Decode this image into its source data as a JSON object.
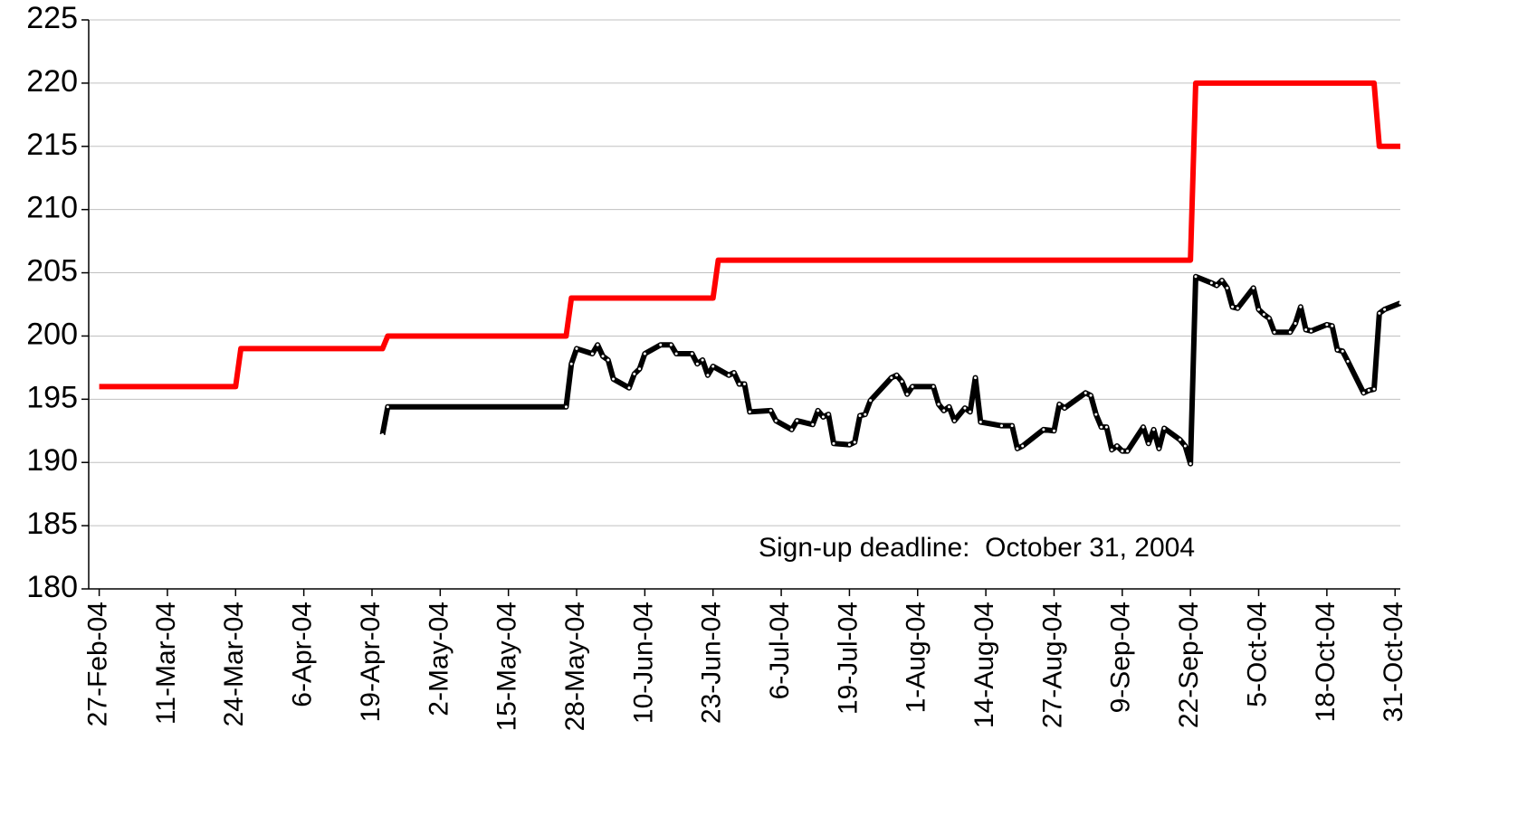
{
  "chart_data": {
    "type": "line",
    "annotation": "Sign-up deadline:  October 31, 2004",
    "xlim": [
      "2004-02-25",
      "2004-11-01"
    ],
    "xticks": [
      {
        "value": "2004-02-27",
        "label": "27-Feb-04"
      },
      {
        "value": "2004-03-11",
        "label": "11-Mar-04"
      },
      {
        "value": "2004-03-24",
        "label": "24-Mar-04"
      },
      {
        "value": "2004-04-06",
        "label": "6-Apr-04"
      },
      {
        "value": "2004-04-19",
        "label": "19-Apr-04"
      },
      {
        "value": "2004-05-02",
        "label": "2-May-04"
      },
      {
        "value": "2004-05-15",
        "label": "15-May-04"
      },
      {
        "value": "2004-05-28",
        "label": "28-May-04"
      },
      {
        "value": "2004-06-10",
        "label": "10-Jun-04"
      },
      {
        "value": "2004-06-23",
        "label": "23-Jun-04"
      },
      {
        "value": "2004-07-06",
        "label": "6-Jul-04"
      },
      {
        "value": "2004-07-19",
        "label": "19-Jul-04"
      },
      {
        "value": "2004-08-01",
        "label": "1-Aug-04"
      },
      {
        "value": "2004-08-14",
        "label": "14-Aug-04"
      },
      {
        "value": "2004-08-27",
        "label": "27-Aug-04"
      },
      {
        "value": "2004-09-09",
        "label": "9-Sep-04"
      },
      {
        "value": "2004-09-22",
        "label": "22-Sep-04"
      },
      {
        "value": "2004-10-05",
        "label": "5-Oct-04"
      },
      {
        "value": "2004-10-18",
        "label": "18-Oct-04"
      },
      {
        "value": "2004-10-31",
        "label": "31-Oct-04"
      }
    ],
    "ylim": [
      180,
      225
    ],
    "yticks": [
      180,
      185,
      190,
      195,
      200,
      205,
      210,
      215,
      220,
      225
    ],
    "grid": true,
    "series": [
      {
        "color": "#ff0000",
        "markers": false,
        "x": [
          "2004-02-27",
          "2004-03-24",
          "2004-03-25",
          "2004-04-21",
          "2004-04-22",
          "2004-05-26",
          "2004-05-27",
          "2004-06-23",
          "2004-06-24",
          "2004-09-22",
          "2004-09-23",
          "2004-10-27",
          "2004-10-28",
          "2004-11-01"
        ],
        "values": [
          196,
          196,
          199,
          199,
          200,
          200,
          203,
          203,
          206,
          206,
          220,
          220,
          215,
          215
        ]
      },
      {
        "color": "#000000",
        "markers": true,
        "x": [
          "2004-04-21",
          "2004-04-22",
          "2004-05-26",
          "2004-05-27",
          "2004-05-28",
          "2004-05-31",
          "2004-06-01",
          "2004-06-02",
          "2004-06-03",
          "2004-06-04",
          "2004-06-07",
          "2004-06-08",
          "2004-06-09",
          "2004-06-10",
          "2004-06-13",
          "2004-06-15",
          "2004-06-16",
          "2004-06-19",
          "2004-06-20",
          "2004-06-21",
          "2004-06-22",
          "2004-06-23",
          "2004-06-26",
          "2004-06-27",
          "2004-06-28",
          "2004-06-29",
          "2004-06-30",
          "2004-07-04",
          "2004-07-05",
          "2004-07-08",
          "2004-07-09",
          "2004-07-12",
          "2004-07-13",
          "2004-07-14",
          "2004-07-15",
          "2004-07-16",
          "2004-07-19",
          "2004-07-20",
          "2004-07-21",
          "2004-07-22",
          "2004-07-23",
          "2004-07-27",
          "2004-07-28",
          "2004-07-29",
          "2004-07-30",
          "2004-07-31",
          "2004-08-04",
          "2004-08-05",
          "2004-08-06",
          "2004-08-07",
          "2004-08-08",
          "2004-08-10",
          "2004-08-11",
          "2004-08-12",
          "2004-08-13",
          "2004-08-17",
          "2004-08-19",
          "2004-08-20",
          "2004-08-21",
          "2004-08-25",
          "2004-08-27",
          "2004-08-28",
          "2004-08-29",
          "2004-09-02",
          "2004-09-03",
          "2004-09-04",
          "2004-09-05",
          "2004-09-06",
          "2004-09-07",
          "2004-09-08",
          "2004-09-09",
          "2004-09-10",
          "2004-09-13",
          "2004-09-14",
          "2004-09-15",
          "2004-09-16",
          "2004-09-17",
          "2004-09-20",
          "2004-09-21",
          "2004-09-22",
          "2004-09-23",
          "2004-09-26",
          "2004-09-27",
          "2004-09-28",
          "2004-09-29",
          "2004-09-30",
          "2004-10-01",
          "2004-10-04",
          "2004-10-05",
          "2004-10-06",
          "2004-10-07",
          "2004-10-08",
          "2004-10-11",
          "2004-10-12",
          "2004-10-13",
          "2004-10-14",
          "2004-10-15",
          "2004-10-18",
          "2004-10-19",
          "2004-10-20",
          "2004-10-21",
          "2004-10-22",
          "2004-10-25",
          "2004-10-26",
          "2004-10-27",
          "2004-10-28",
          "2004-10-29",
          "2004-11-01"
        ],
        "values": [
          192.2,
          194.4,
          194.4,
          197.8,
          199.0,
          198.6,
          199.3,
          198.4,
          198.1,
          196.6,
          195.9,
          197.0,
          197.4,
          198.6,
          199.3,
          199.3,
          198.6,
          198.6,
          197.8,
          198.1,
          196.9,
          197.6,
          196.9,
          197.1,
          196.2,
          196.2,
          194.0,
          194.1,
          193.3,
          192.6,
          193.3,
          193.0,
          194.1,
          193.6,
          193.8,
          191.5,
          191.4,
          191.6,
          193.7,
          193.8,
          194.9,
          196.7,
          196.9,
          196.4,
          195.4,
          196.0,
          196.0,
          194.6,
          194.1,
          194.4,
          193.3,
          194.3,
          194.0,
          196.7,
          193.2,
          192.9,
          192.9,
          191.1,
          191.3,
          192.6,
          192.5,
          194.6,
          194.3,
          195.5,
          195.3,
          193.8,
          192.8,
          192.8,
          191.0,
          191.3,
          190.9,
          190.9,
          192.8,
          191.5,
          192.6,
          191.1,
          192.7,
          191.8,
          191.3,
          189.9,
          204.7,
          204.2,
          204.0,
          204.4,
          203.8,
          202.3,
          202.2,
          203.8,
          202.1,
          201.7,
          201.4,
          200.3,
          200.3,
          201.0,
          202.3,
          200.5,
          200.4,
          200.9,
          200.8,
          198.9,
          198.8,
          198.0,
          195.5,
          195.7,
          195.8,
          201.8,
          202.1,
          202.6
        ]
      }
    ]
  }
}
